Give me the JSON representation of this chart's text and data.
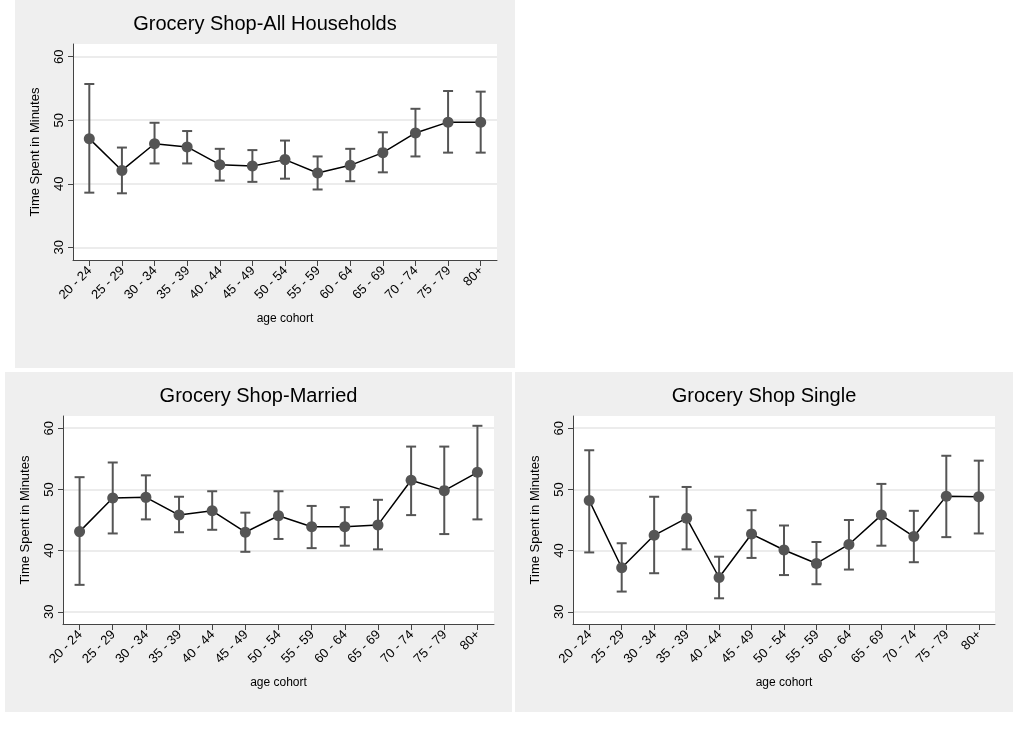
{
  "chart_data": [
    {
      "type": "line",
      "title": "Grocery Shop-All Households",
      "xlabel": "age cohort",
      "ylabel": "Time Spent in Minutes",
      "categories": [
        "20 - 24",
        "25 - 29",
        "30 - 34",
        "35 - 39",
        "40 - 44",
        "45 - 49",
        "50 - 54",
        "55 - 59",
        "60 - 64",
        "65 - 69",
        "70 - 74",
        "75 - 79",
        "80+"
      ],
      "color": "#555555",
      "values": [
        47.1,
        42.1,
        46.3,
        45.8,
        43.0,
        42.8,
        43.8,
        41.7,
        42.9,
        44.9,
        48.0,
        49.7,
        49.7
      ],
      "errors": [
        [
          38.6,
          55.7
        ],
        [
          38.5,
          45.7
        ],
        [
          43.2,
          49.6
        ],
        [
          43.2,
          48.3
        ],
        [
          40.5,
          45.5
        ],
        [
          40.3,
          45.3
        ],
        [
          40.8,
          46.8
        ],
        [
          39.1,
          44.3
        ],
        [
          40.4,
          45.5
        ],
        [
          41.8,
          48.1
        ],
        [
          44.3,
          51.8
        ],
        [
          44.9,
          54.6
        ],
        [
          44.9,
          54.5
        ]
      ],
      "ylim": [
        28,
        62
      ],
      "yticks": [
        30,
        40,
        50,
        60
      ],
      "grid": "y",
      "marker": "circle"
    },
    {
      "type": "line",
      "title": "Grocery Shop-Married",
      "xlabel": "age cohort",
      "ylabel": "Time Spent in Minutes",
      "categories": [
        "20 - 24",
        "25 - 29",
        "30 - 34",
        "35 - 39",
        "40 - 44",
        "45 - 49",
        "50 - 54",
        "55 - 59",
        "60 - 64",
        "65 - 69",
        "70 - 74",
        "75 - 79",
        "80+"
      ],
      "color": "#555555",
      "values": [
        43.1,
        48.6,
        48.7,
        45.8,
        46.5,
        43.0,
        45.7,
        43.9,
        43.9,
        44.2,
        51.5,
        49.8,
        52.8
      ],
      "errors": [
        [
          34.4,
          52.0
        ],
        [
          42.8,
          54.4
        ],
        [
          45.1,
          52.3
        ],
        [
          43.0,
          48.8
        ],
        [
          43.4,
          49.7
        ],
        [
          39.8,
          46.2
        ],
        [
          41.9,
          49.7
        ],
        [
          40.4,
          47.3
        ],
        [
          40.8,
          47.1
        ],
        [
          40.2,
          48.3
        ],
        [
          45.8,
          57.0
        ],
        [
          42.7,
          57.0
        ],
        [
          45.1,
          60.4
        ]
      ],
      "ylim": [
        28,
        62
      ],
      "yticks": [
        30,
        40,
        50,
        60
      ],
      "grid": "y",
      "marker": "circle"
    },
    {
      "type": "line",
      "title": "Grocery Shop Single",
      "xlabel": "age cohort",
      "ylabel": "Time Spent in Minutes",
      "categories": [
        "20 - 24",
        "25 - 29",
        "30 - 34",
        "35 - 39",
        "40 - 44",
        "45 - 49",
        "50 - 54",
        "55 - 59",
        "60 - 64",
        "65 - 69",
        "70 - 74",
        "75 - 79",
        "80+"
      ],
      "color": "#555555",
      "values": [
        48.2,
        37.2,
        42.5,
        45.3,
        35.6,
        42.7,
        40.1,
        37.9,
        41.0,
        45.8,
        42.3,
        48.9,
        48.8
      ],
      "errors": [
        [
          39.7,
          56.4
        ],
        [
          33.3,
          41.2
        ],
        [
          36.3,
          48.8
        ],
        [
          40.2,
          50.4
        ],
        [
          32.2,
          39.0
        ],
        [
          38.8,
          46.6
        ],
        [
          36.0,
          44.1
        ],
        [
          34.5,
          41.4
        ],
        [
          36.9,
          45.0
        ],
        [
          40.8,
          50.9
        ],
        [
          38.1,
          46.5
        ],
        [
          42.2,
          55.5
        ],
        [
          42.8,
          54.7
        ]
      ],
      "ylim": [
        28,
        62
      ],
      "yticks": [
        30,
        40,
        50,
        60
      ],
      "grid": "y",
      "marker": "circle"
    }
  ]
}
